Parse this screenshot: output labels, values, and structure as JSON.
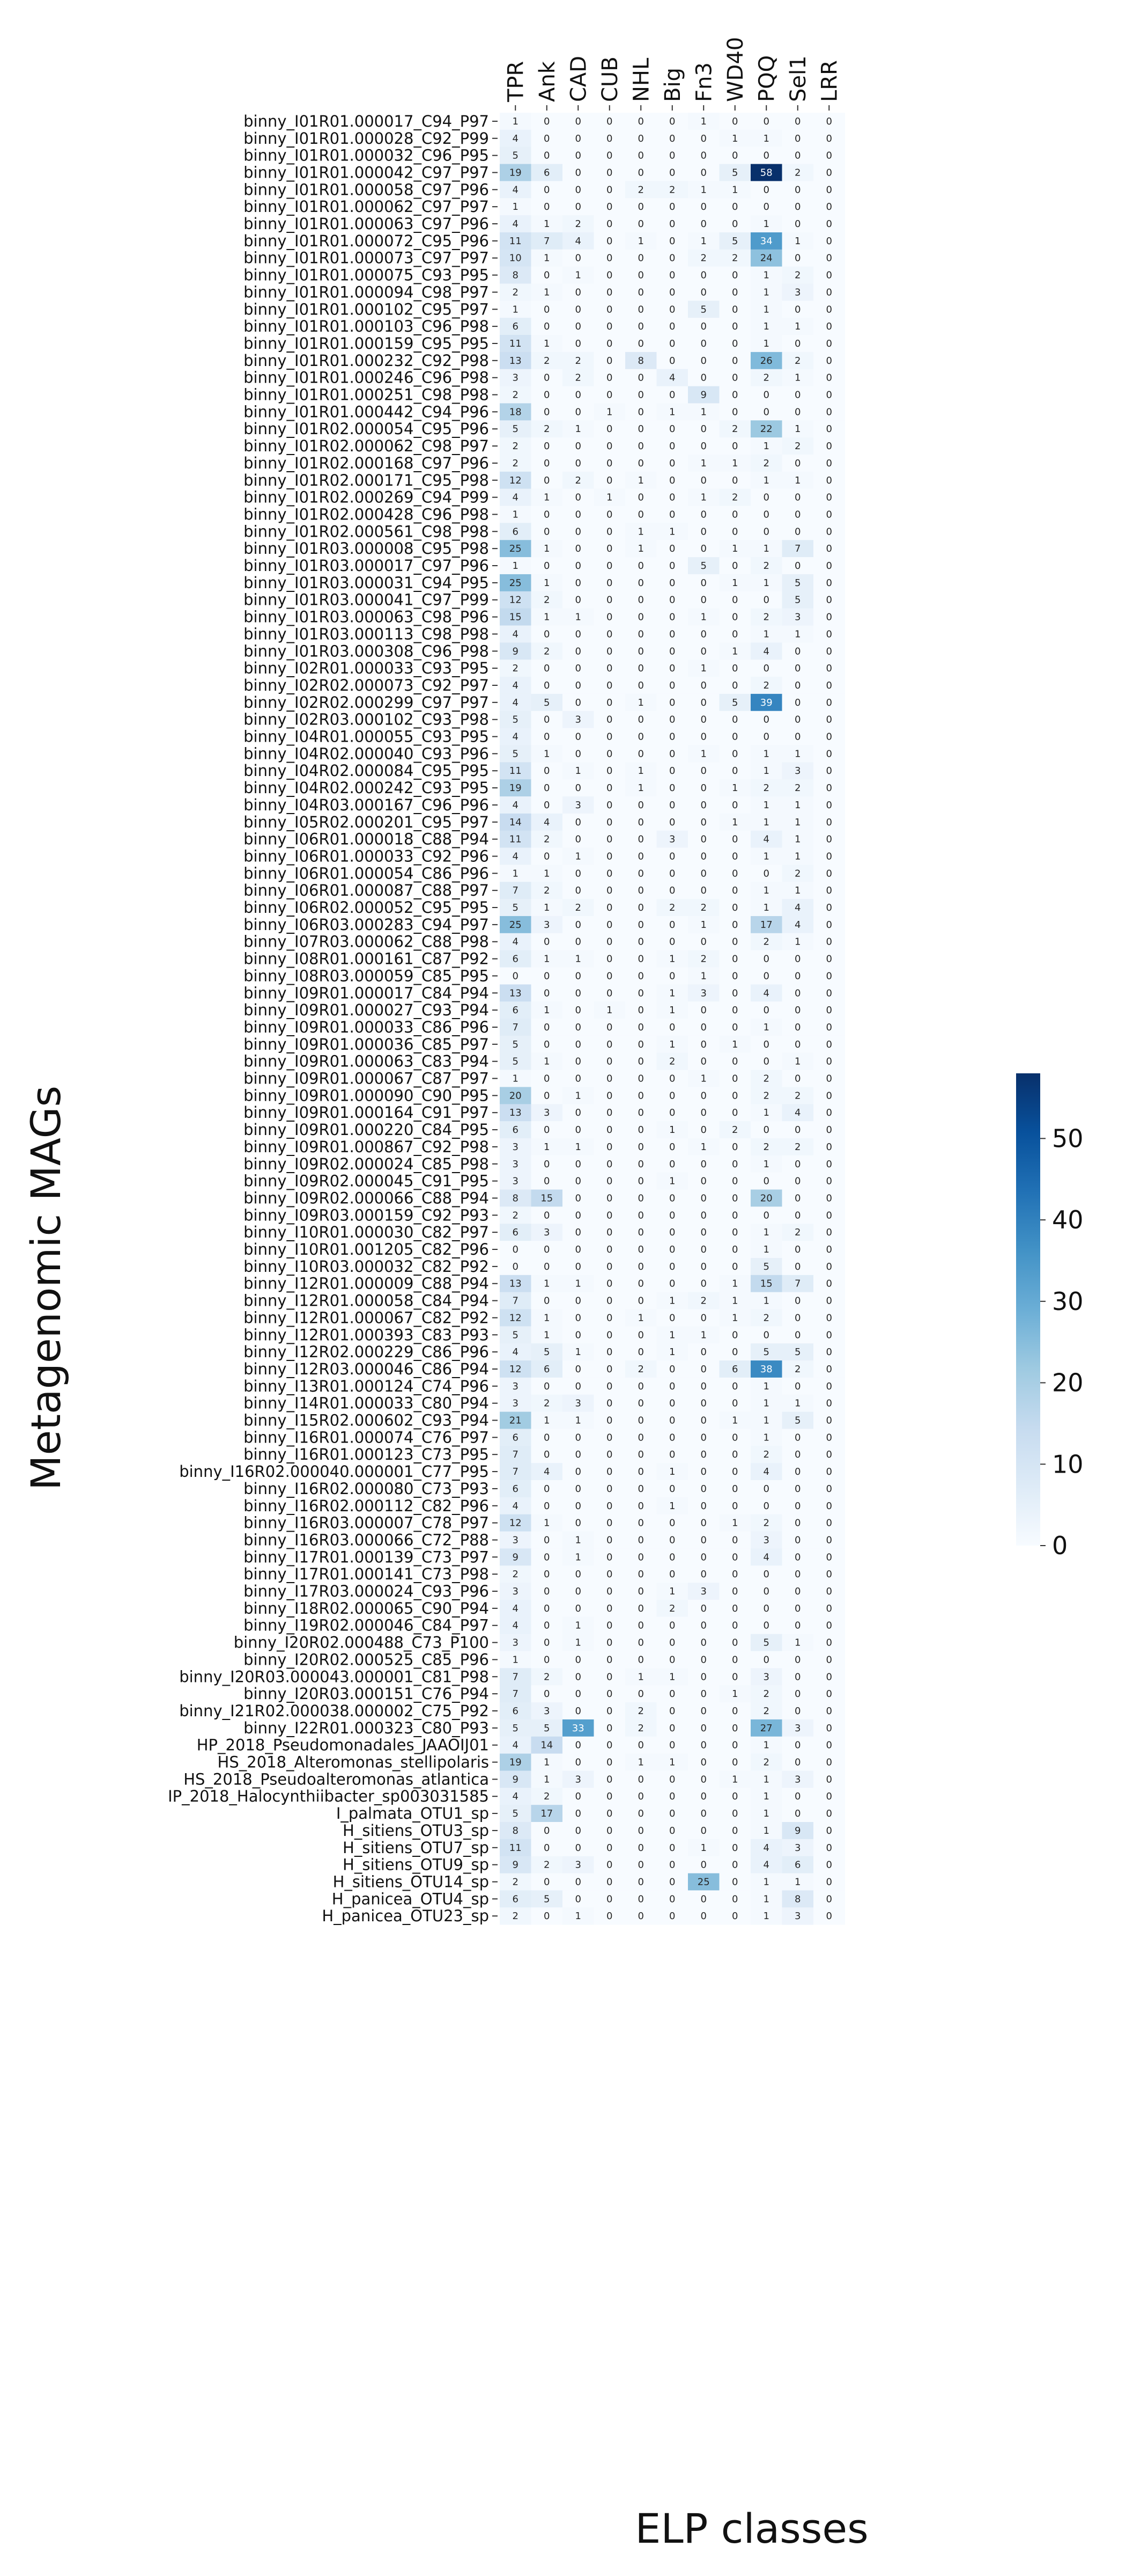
{
  "chart_data": {
    "type": "heatmap",
    "xlabel": "ELP classes",
    "ylabel": "Metagenomic MAGs",
    "colormap": "Blues",
    "colorbar": {
      "min": 0,
      "max": 58,
      "ticks": [
        0,
        10,
        20,
        30,
        40,
        50
      ]
    },
    "columns": [
      "TPR",
      "Ank",
      "CAD",
      "CUB",
      "NHL",
      "Big",
      "Fn3",
      "WD40",
      "PQQ",
      "Sel1",
      "LRR"
    ],
    "rows": [
      "binny_I01R01.000017_C94_P97",
      "binny_I01R01.000028_C92_P99",
      "binny_I01R01.000032_C96_P95",
      "binny_I01R01.000042_C97_P97",
      "binny_I01R01.000058_C97_P96",
      "binny_I01R01.000062_C97_P97",
      "binny_I01R01.000063_C97_P96",
      "binny_I01R01.000072_C95_P96",
      "binny_I01R01.000073_C97_P97",
      "binny_I01R01.000075_C93_P95",
      "binny_I01R01.000094_C98_P97",
      "binny_I01R01.000102_C95_P97",
      "binny_I01R01.000103_C96_P98",
      "binny_I01R01.000159_C95_P95",
      "binny_I01R01.000232_C92_P98",
      "binny_I01R01.000246_C96_P98",
      "binny_I01R01.000251_C98_P98",
      "binny_I01R01.000442_C94_P96",
      "binny_I01R02.000054_C95_P96",
      "binny_I01R02.000062_C98_P97",
      "binny_I01R02.000168_C97_P96",
      "binny_I01R02.000171_C95_P98",
      "binny_I01R02.000269_C94_P99",
      "binny_I01R02.000428_C96_P98",
      "binny_I01R02.000561_C98_P98",
      "binny_I01R03.000008_C95_P98",
      "binny_I01R03.000017_C97_P96",
      "binny_I01R03.000031_C94_P95",
      "binny_I01R03.000041_C97_P99",
      "binny_I01R03.000063_C98_P96",
      "binny_I01R03.000113_C98_P98",
      "binny_I01R03.000308_C96_P98",
      "binny_I02R01.000033_C93_P95",
      "binny_I02R02.000073_C92_P97",
      "binny_I02R02.000299_C97_P97",
      "binny_I02R03.000102_C93_P98",
      "binny_I04R01.000055_C93_P95",
      "binny_I04R02.000040_C93_P96",
      "binny_I04R02.000084_C95_P95",
      "binny_I04R02.000242_C93_P95",
      "binny_I04R03.000167_C96_P96",
      "binny_I05R02.000201_C95_P97",
      "binny_I06R01.000018_C88_P94",
      "binny_I06R01.000033_C92_P96",
      "binny_I06R01.000054_C86_P96",
      "binny_I06R01.000087_C88_P97",
      "binny_I06R02.000052_C95_P95",
      "binny_I06R03.000283_C94_P97",
      "binny_I07R03.000062_C88_P98",
      "binny_I08R01.000161_C87_P92",
      "binny_I08R03.000059_C85_P95",
      "binny_I09R01.000017_C84_P94",
      "binny_I09R01.000027_C93_P94",
      "binny_I09R01.000033_C86_P96",
      "binny_I09R01.000036_C85_P97",
      "binny_I09R01.000063_C83_P94",
      "binny_I09R01.000067_C87_P97",
      "binny_I09R01.000090_C90_P95",
      "binny_I09R01.000164_C91_P97",
      "binny_I09R01.000220_C84_P95",
      "binny_I09R01.000867_C92_P98",
      "binny_I09R02.000024_C85_P98",
      "binny_I09R02.000045_C91_P95",
      "binny_I09R02.000066_C88_P94",
      "binny_I09R03.000159_C92_P93",
      "binny_I10R01.000030_C82_P97",
      "binny_I10R01.001205_C82_P96",
      "binny_I10R03.000032_C82_P92",
      "binny_I12R01.000009_C88_P94",
      "binny_I12R01.000058_C84_P94",
      "binny_I12R01.000067_C82_P92",
      "binny_I12R01.000393_C83_P93",
      "binny_I12R02.000229_C86_P96",
      "binny_I12R03.000046_C86_P94",
      "binny_I13R01.000124_C74_P96",
      "binny_I14R01.000033_C80_P94",
      "binny_I15R02.000602_C93_P94",
      "binny_I16R01.000074_C76_P97",
      "binny_I16R01.000123_C73_P95",
      "binny_I16R02.000040.000001_C77_P95",
      "binny_I16R02.000080_C73_P93",
      "binny_I16R02.000112_C82_P96",
      "binny_I16R03.000007_C78_P97",
      "binny_I16R03.000066_C72_P88",
      "binny_I17R01.000139_C73_P97",
      "binny_I17R01.000141_C73_P98",
      "binny_I17R03.000024_C93_P96",
      "binny_I18R02.000065_C90_P94",
      "binny_I19R02.000046_C84_P97",
      "binny_I20R02.000488_C73_P100",
      "binny_I20R02.000525_C85_P96",
      "binny_I20R03.000043.000001_C81_P98",
      "binny_I20R03.000151_C76_P94",
      "binny_I21R02.000038.000002_C75_P92",
      "binny_I22R01.000323_C80_P93",
      "HP_2018_Pseudomonadales_JAAOIJ01",
      "HS_2018_Alteromonas_stellipolaris",
      "HS_2018_Pseudoalteromonas_atlantica",
      "IP_2018_Halocynthiibacter_sp003031585",
      "I_palmata_OTU1_sp",
      "H_sitiens_OTU3_sp",
      "H_sitiens_OTU7_sp",
      "H_sitiens_OTU9_sp",
      "H_sitiens_OTU14_sp",
      "H_panicea_OTU4_sp",
      "H_panicea_OTU23_sp"
    ],
    "values": [
      [
        1,
        0,
        0,
        0,
        0,
        0,
        1,
        0,
        0,
        0,
        0
      ],
      [
        4,
        0,
        0,
        0,
        0,
        0,
        0,
        1,
        1,
        0,
        0
      ],
      [
        5,
        0,
        0,
        0,
        0,
        0,
        0,
        0,
        0,
        0,
        0
      ],
      [
        19,
        6,
        0,
        0,
        0,
        0,
        0,
        5,
        58,
        2,
        0
      ],
      [
        4,
        0,
        0,
        0,
        2,
        2,
        1,
        1,
        0,
        0,
        0
      ],
      [
        1,
        0,
        0,
        0,
        0,
        0,
        0,
        0,
        0,
        0,
        0
      ],
      [
        4,
        1,
        2,
        0,
        0,
        0,
        0,
        0,
        1,
        0,
        0
      ],
      [
        11,
        7,
        4,
        0,
        1,
        0,
        1,
        5,
        34,
        1,
        0
      ],
      [
        10,
        1,
        0,
        0,
        0,
        0,
        2,
        2,
        24,
        0,
        0
      ],
      [
        8,
        0,
        1,
        0,
        0,
        0,
        0,
        0,
        1,
        2,
        0
      ],
      [
        2,
        1,
        0,
        0,
        0,
        0,
        0,
        0,
        1,
        3,
        0
      ],
      [
        1,
        0,
        0,
        0,
        0,
        0,
        5,
        0,
        1,
        0,
        0
      ],
      [
        6,
        0,
        0,
        0,
        0,
        0,
        0,
        0,
        1,
        1,
        0
      ],
      [
        11,
        1,
        0,
        0,
        0,
        0,
        0,
        0,
        1,
        0,
        0
      ],
      [
        13,
        2,
        2,
        0,
        8,
        0,
        0,
        0,
        26,
        2,
        0
      ],
      [
        3,
        0,
        2,
        0,
        0,
        4,
        0,
        0,
        2,
        1,
        0
      ],
      [
        2,
        0,
        0,
        0,
        0,
        0,
        9,
        0,
        0,
        0,
        0
      ],
      [
        18,
        0,
        0,
        1,
        0,
        1,
        1,
        0,
        0,
        0,
        0
      ],
      [
        5,
        2,
        1,
        0,
        0,
        0,
        0,
        2,
        22,
        1,
        0
      ],
      [
        2,
        0,
        0,
        0,
        0,
        0,
        0,
        0,
        1,
        2,
        0
      ],
      [
        2,
        0,
        0,
        0,
        0,
        0,
        1,
        1,
        2,
        0,
        0
      ],
      [
        12,
        0,
        2,
        0,
        1,
        0,
        0,
        0,
        1,
        1,
        0
      ],
      [
        4,
        1,
        0,
        1,
        0,
        0,
        1,
        2,
        0,
        0,
        0
      ],
      [
        1,
        0,
        0,
        0,
        0,
        0,
        0,
        0,
        0,
        0,
        0
      ],
      [
        6,
        0,
        0,
        0,
        1,
        1,
        0,
        0,
        0,
        0,
        0
      ],
      [
        25,
        1,
        0,
        0,
        1,
        0,
        0,
        1,
        1,
        7,
        0
      ],
      [
        1,
        0,
        0,
        0,
        0,
        0,
        5,
        0,
        2,
        0,
        0
      ],
      [
        25,
        1,
        0,
        0,
        0,
        0,
        0,
        1,
        1,
        5,
        0
      ],
      [
        12,
        2,
        0,
        0,
        0,
        0,
        0,
        0,
        0,
        5,
        0
      ],
      [
        15,
        1,
        1,
        0,
        0,
        0,
        1,
        0,
        2,
        3,
        0
      ],
      [
        4,
        0,
        0,
        0,
        0,
        0,
        0,
        0,
        1,
        1,
        0
      ],
      [
        9,
        2,
        0,
        0,
        0,
        0,
        0,
        1,
        4,
        0,
        0
      ],
      [
        2,
        0,
        0,
        0,
        0,
        0,
        1,
        0,
        0,
        0,
        0
      ],
      [
        4,
        0,
        0,
        0,
        0,
        0,
        0,
        0,
        2,
        0,
        0
      ],
      [
        4,
        5,
        0,
        0,
        1,
        0,
        0,
        5,
        39,
        0,
        0
      ],
      [
        5,
        0,
        3,
        0,
        0,
        0,
        0,
        0,
        0,
        0,
        0
      ],
      [
        4,
        0,
        0,
        0,
        0,
        0,
        0,
        0,
        0,
        0,
        0
      ],
      [
        5,
        1,
        0,
        0,
        0,
        0,
        1,
        0,
        1,
        1,
        0
      ],
      [
        11,
        0,
        1,
        0,
        1,
        0,
        0,
        0,
        1,
        3,
        0
      ],
      [
        19,
        0,
        0,
        0,
        1,
        0,
        0,
        1,
        2,
        2,
        0
      ],
      [
        4,
        0,
        3,
        0,
        0,
        0,
        0,
        0,
        1,
        1,
        0
      ],
      [
        14,
        4,
        0,
        0,
        0,
        0,
        0,
        1,
        1,
        1,
        0
      ],
      [
        11,
        2,
        0,
        0,
        0,
        3,
        0,
        0,
        4,
        1,
        0
      ],
      [
        4,
        0,
        1,
        0,
        0,
        0,
        0,
        0,
        1,
        1,
        0
      ],
      [
        1,
        1,
        0,
        0,
        0,
        0,
        0,
        0,
        0,
        2,
        0
      ],
      [
        7,
        2,
        0,
        0,
        0,
        0,
        0,
        0,
        1,
        1,
        0
      ],
      [
        5,
        1,
        2,
        0,
        0,
        2,
        2,
        0,
        1,
        4,
        0
      ],
      [
        25,
        3,
        0,
        0,
        0,
        0,
        1,
        0,
        17,
        4,
        0
      ],
      [
        4,
        0,
        0,
        0,
        0,
        0,
        0,
        0,
        2,
        1,
        0
      ],
      [
        6,
        1,
        1,
        0,
        0,
        1,
        2,
        0,
        0,
        0,
        0
      ],
      [
        0,
        0,
        0,
        0,
        0,
        0,
        1,
        0,
        0,
        0,
        0
      ],
      [
        13,
        0,
        0,
        0,
        0,
        1,
        3,
        0,
        4,
        0,
        0
      ],
      [
        6,
        1,
        0,
        1,
        0,
        1,
        0,
        0,
        0,
        0,
        0
      ],
      [
        7,
        0,
        0,
        0,
        0,
        0,
        0,
        0,
        1,
        0,
        0
      ],
      [
        5,
        0,
        0,
        0,
        0,
        1,
        0,
        1,
        0,
        0,
        0
      ],
      [
        5,
        1,
        0,
        0,
        0,
        2,
        0,
        0,
        0,
        1,
        0
      ],
      [
        1,
        0,
        0,
        0,
        0,
        0,
        1,
        0,
        2,
        0,
        0
      ],
      [
        20,
        0,
        1,
        0,
        0,
        0,
        0,
        0,
        2,
        2,
        0
      ],
      [
        13,
        3,
        0,
        0,
        0,
        0,
        0,
        0,
        1,
        4,
        0
      ],
      [
        6,
        0,
        0,
        0,
        0,
        1,
        0,
        2,
        0,
        0,
        0
      ],
      [
        3,
        1,
        1,
        0,
        0,
        0,
        1,
        0,
        2,
        2,
        0
      ],
      [
        3,
        0,
        0,
        0,
        0,
        0,
        0,
        0,
        1,
        0,
        0
      ],
      [
        3,
        0,
        0,
        0,
        0,
        1,
        0,
        0,
        0,
        0,
        0
      ],
      [
        8,
        15,
        0,
        0,
        0,
        0,
        0,
        0,
        20,
        0,
        0
      ],
      [
        2,
        0,
        0,
        0,
        0,
        0,
        0,
        0,
        0,
        0,
        0
      ],
      [
        6,
        3,
        0,
        0,
        0,
        0,
        0,
        0,
        1,
        2,
        0
      ],
      [
        0,
        0,
        0,
        0,
        0,
        0,
        0,
        0,
        1,
        0,
        0
      ],
      [
        0,
        0,
        0,
        0,
        0,
        0,
        0,
        0,
        5,
        0,
        0
      ],
      [
        13,
        1,
        1,
        0,
        0,
        0,
        0,
        1,
        15,
        7,
        0
      ],
      [
        7,
        0,
        0,
        0,
        0,
        1,
        2,
        1,
        1,
        0,
        0
      ],
      [
        12,
        1,
        0,
        0,
        1,
        0,
        0,
        1,
        2,
        0,
        0
      ],
      [
        5,
        1,
        0,
        0,
        0,
        1,
        1,
        0,
        0,
        0,
        0
      ],
      [
        4,
        5,
        1,
        0,
        0,
        1,
        0,
        0,
        5,
        5,
        0
      ],
      [
        12,
        6,
        0,
        0,
        2,
        0,
        0,
        6,
        38,
        2,
        0
      ],
      [
        3,
        0,
        0,
        0,
        0,
        0,
        0,
        0,
        1,
        0,
        0
      ],
      [
        3,
        2,
        3,
        0,
        0,
        0,
        0,
        0,
        1,
        1,
        0
      ],
      [
        21,
        1,
        1,
        0,
        0,
        0,
        0,
        1,
        1,
        5,
        0
      ],
      [
        6,
        0,
        0,
        0,
        0,
        0,
        0,
        0,
        1,
        0,
        0
      ],
      [
        7,
        0,
        0,
        0,
        0,
        0,
        0,
        0,
        2,
        0,
        0
      ],
      [
        7,
        4,
        0,
        0,
        0,
        1,
        0,
        0,
        4,
        0,
        0
      ],
      [
        6,
        0,
        0,
        0,
        0,
        0,
        0,
        0,
        0,
        0,
        0
      ],
      [
        4,
        0,
        0,
        0,
        0,
        1,
        0,
        0,
        0,
        0,
        0
      ],
      [
        12,
        1,
        0,
        0,
        0,
        0,
        0,
        1,
        2,
        0,
        0
      ],
      [
        3,
        0,
        1,
        0,
        0,
        0,
        0,
        0,
        3,
        0,
        0
      ],
      [
        9,
        0,
        1,
        0,
        0,
        0,
        0,
        0,
        4,
        0,
        0
      ],
      [
        2,
        0,
        0,
        0,
        0,
        0,
        0,
        0,
        0,
        0,
        0
      ],
      [
        3,
        0,
        0,
        0,
        0,
        1,
        3,
        0,
        0,
        0,
        0
      ],
      [
        4,
        0,
        0,
        0,
        0,
        2,
        0,
        0,
        0,
        0,
        0
      ],
      [
        4,
        0,
        1,
        0,
        0,
        0,
        0,
        0,
        0,
        0,
        0
      ],
      [
        3,
        0,
        1,
        0,
        0,
        0,
        0,
        0,
        5,
        1,
        0
      ],
      [
        1,
        0,
        0,
        0,
        0,
        0,
        0,
        0,
        0,
        0,
        0
      ],
      [
        7,
        2,
        0,
        0,
        1,
        1,
        0,
        0,
        3,
        0,
        0
      ],
      [
        7,
        0,
        0,
        0,
        0,
        0,
        0,
        1,
        2,
        0,
        0
      ],
      [
        6,
        3,
        0,
        0,
        2,
        0,
        0,
        0,
        2,
        0,
        0
      ],
      [
        5,
        5,
        33,
        0,
        2,
        0,
        0,
        0,
        27,
        3,
        0
      ],
      [
        4,
        14,
        0,
        0,
        0,
        0,
        0,
        0,
        1,
        0,
        0
      ],
      [
        19,
        1,
        0,
        0,
        1,
        1,
        0,
        0,
        2,
        0,
        0
      ],
      [
        9,
        1,
        3,
        0,
        0,
        0,
        0,
        1,
        1,
        3,
        0
      ],
      [
        4,
        2,
        0,
        0,
        0,
        0,
        0,
        0,
        1,
        0,
        0
      ],
      [
        5,
        17,
        0,
        0,
        0,
        0,
        0,
        0,
        1,
        0,
        0
      ],
      [
        8,
        0,
        0,
        0,
        0,
        0,
        0,
        0,
        1,
        9,
        0
      ],
      [
        11,
        0,
        0,
        0,
        0,
        0,
        1,
        0,
        4,
        3,
        0
      ],
      [
        9,
        2,
        3,
        0,
        0,
        0,
        0,
        0,
        4,
        6,
        0
      ],
      [
        2,
        0,
        0,
        0,
        0,
        0,
        25,
        0,
        1,
        1,
        0
      ],
      [
        6,
        5,
        0,
        0,
        0,
        0,
        0,
        0,
        1,
        8,
        0
      ],
      [
        2,
        0,
        1,
        0,
        0,
        0,
        0,
        0,
        1,
        3,
        0
      ]
    ]
  }
}
